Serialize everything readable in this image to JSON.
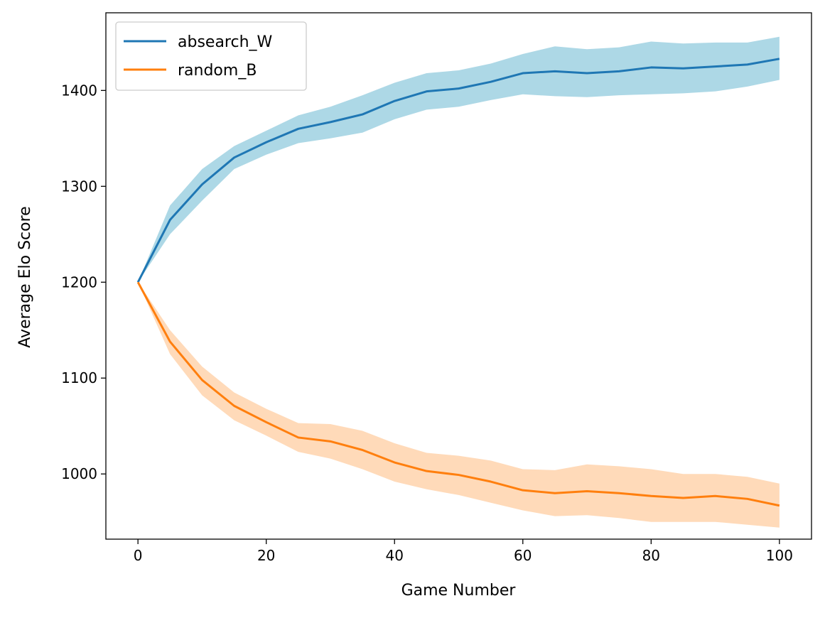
{
  "chart_data": {
    "type": "line",
    "title": "",
    "xlabel": "Game Number",
    "ylabel": "Average Elo Score",
    "xlim": [
      -5,
      105
    ],
    "ylim": [
      932,
      1481
    ],
    "xticks": [
      0,
      20,
      40,
      60,
      80,
      100
    ],
    "yticks": [
      1000,
      1100,
      1200,
      1300,
      1400
    ],
    "grid": false,
    "legend_position": "top-left",
    "series": [
      {
        "name": "absearch_W",
        "color": "#1f77b4",
        "band_color": "#add8e6",
        "x": [
          0,
          5,
          10,
          15,
          20,
          25,
          30,
          35,
          40,
          45,
          50,
          55,
          60,
          65,
          70,
          75,
          80,
          85,
          90,
          95,
          100
        ],
        "values": [
          1200,
          1265,
          1302,
          1330,
          1346,
          1360,
          1367,
          1375,
          1389,
          1399,
          1402,
          1409,
          1418,
          1420,
          1418,
          1420,
          1424,
          1423,
          1425,
          1427,
          1433
        ],
        "lower": [
          1200,
          1250,
          1285,
          1318,
          1333,
          1345,
          1350,
          1356,
          1370,
          1380,
          1383,
          1390,
          1396,
          1394,
          1393,
          1395,
          1396,
          1397,
          1399,
          1404,
          1411
        ],
        "upper": [
          1200,
          1280,
          1318,
          1342,
          1358,
          1374,
          1383,
          1395,
          1408,
          1418,
          1421,
          1428,
          1438,
          1446,
          1443,
          1445,
          1451,
          1449,
          1450,
          1450,
          1456
        ]
      },
      {
        "name": "random_B",
        "color": "#ff7f0e",
        "band_color": "#ffdab9",
        "x": [
          0,
          5,
          10,
          15,
          20,
          25,
          30,
          35,
          40,
          45,
          50,
          55,
          60,
          65,
          70,
          75,
          80,
          85,
          90,
          95,
          100
        ],
        "values": [
          1200,
          1138,
          1098,
          1071,
          1054,
          1038,
          1034,
          1025,
          1012,
          1003,
          999,
          992,
          983,
          980,
          982,
          980,
          977,
          975,
          977,
          974,
          967
        ],
        "lower": [
          1200,
          1125,
          1082,
          1056,
          1040,
          1023,
          1016,
          1005,
          992,
          984,
          978,
          970,
          962,
          956,
          957,
          954,
          950,
          950,
          950,
          947,
          944
        ],
        "upper": [
          1200,
          1150,
          1112,
          1085,
          1068,
          1053,
          1052,
          1045,
          1032,
          1022,
          1019,
          1014,
          1005,
          1004,
          1010,
          1008,
          1005,
          1000,
          1000,
          997,
          990
        ]
      }
    ]
  }
}
